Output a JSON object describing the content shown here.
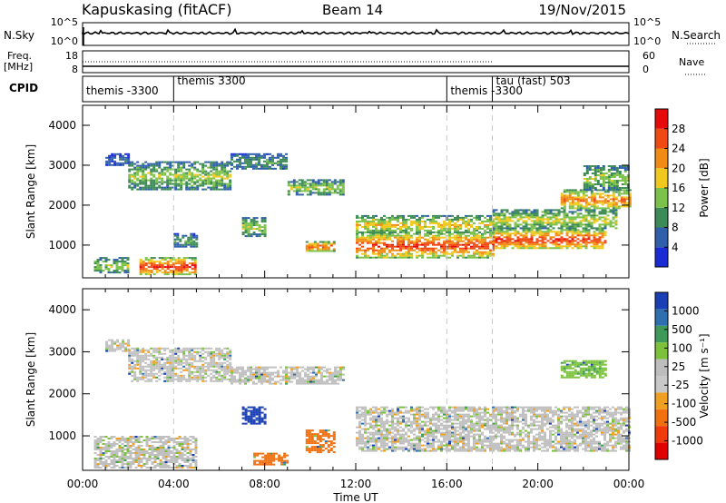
{
  "header": {
    "station": "Kapuskasing (fitACF)",
    "beam": "Beam 14",
    "date": "19/Nov/2015"
  },
  "nsky_panel": {
    "left_label": "N.Sky",
    "right_label": "N.Search",
    "left_ticks": [
      "10^5",
      "10^0"
    ],
    "right_ticks": [
      "10^5",
      "10^0"
    ]
  },
  "freq_panel": {
    "left_label_1": "Freq.",
    "left_label_2": "[MHz]",
    "right_label": "Nave",
    "left_ticks": [
      "18",
      "8"
    ],
    "right_ticks": [
      "60",
      "0"
    ]
  },
  "cpid_panel": {
    "label": "CPID",
    "programs": [
      {
        "name": "themis -3300",
        "start_hour": 0
      },
      {
        "name": "themis 3300",
        "start_hour": 4
      },
      {
        "name": "themis -3300",
        "start_hour": 16
      },
      {
        "name": "tau (fast) 503",
        "start_hour": 18
      }
    ]
  },
  "colors": {
    "power_scale": [
      "#1a2bd6",
      "#2f5faa",
      "#3c8a55",
      "#7cc24a",
      "#f0c81e",
      "#f08c14",
      "#f04a12",
      "#e60a0a"
    ],
    "velocity_scale": [
      "#1a3fb5",
      "#2e6fb0",
      "#3f9a5a",
      "#7bc23a",
      "#bdbdbd",
      "#c8c8c8",
      "#f0a020",
      "#f07010",
      "#f03a0a",
      "#e00000"
    ],
    "ground_scatter": "#c0c0c0",
    "dash_line": "#c8c8c8"
  },
  "chart_data": [
    {
      "type": "heatmap",
      "title": "Power",
      "xlabel": "Time UT",
      "ylabel": "Slant Range [km]",
      "x_ticks": [
        "00:00",
        "04:00",
        "08:00",
        "12:00",
        "16:00",
        "20:00",
        "00:00"
      ],
      "x_range_hours": [
        0,
        24
      ],
      "y_ticks": [
        1000,
        2000,
        3000,
        4000
      ],
      "ylim": [
        180,
        4500
      ],
      "colorbar_label": "Power [dB]",
      "colorbar_ticks": [
        4,
        8,
        12,
        16,
        20,
        24,
        28
      ],
      "colorbar_range": [
        0,
        32
      ],
      "cpid_boundaries_hours": [
        4,
        16,
        18
      ],
      "echo_bands": [
        {
          "t_start": 1.0,
          "t_end": 2.0,
          "r_low": 3000,
          "r_high": 3300,
          "power": 6
        },
        {
          "t_start": 2.0,
          "t_end": 6.5,
          "r_low": 2400,
          "r_high": 3100,
          "power": 14
        },
        {
          "t_start": 6.5,
          "t_end": 9.0,
          "r_low": 2900,
          "r_high": 3300,
          "power": 10
        },
        {
          "t_start": 9.0,
          "t_end": 11.5,
          "r_low": 2250,
          "r_high": 2650,
          "power": 14
        },
        {
          "t_start": 0.5,
          "t_end": 2.0,
          "r_low": 300,
          "r_high": 700,
          "power": 14
        },
        {
          "t_start": 2.5,
          "t_end": 5.0,
          "r_low": 250,
          "r_high": 700,
          "power": 26
        },
        {
          "t_start": 4.0,
          "t_end": 5.0,
          "r_low": 950,
          "r_high": 1300,
          "power": 10
        },
        {
          "t_start": 7.0,
          "t_end": 8.0,
          "r_low": 1200,
          "r_high": 1700,
          "power": 14
        },
        {
          "t_start": 9.8,
          "t_end": 11.0,
          "r_low": 850,
          "r_high": 1100,
          "power": 24
        },
        {
          "t_start": 12.0,
          "t_end": 18.0,
          "r_low": 700,
          "r_high": 1300,
          "power": 26
        },
        {
          "t_start": 12.0,
          "t_end": 18.0,
          "r_low": 1300,
          "r_high": 1750,
          "power": 18
        },
        {
          "t_start": 18.0,
          "t_end": 23.0,
          "r_low": 900,
          "r_high": 1400,
          "power": 26
        },
        {
          "t_start": 18.0,
          "t_end": 23.5,
          "r_low": 1400,
          "r_high": 1900,
          "power": 16
        },
        {
          "t_start": 21.0,
          "t_end": 24.0,
          "r_low": 1900,
          "r_high": 2400,
          "power": 22
        },
        {
          "t_start": 22.0,
          "t_end": 24.0,
          "r_low": 2400,
          "r_high": 3000,
          "power": 14
        }
      ]
    },
    {
      "type": "heatmap",
      "title": "Velocity",
      "xlabel": "Time UT",
      "ylabel": "Slant Range [km]",
      "x_ticks": [
        "00:00",
        "04:00",
        "08:00",
        "12:00",
        "16:00",
        "20:00",
        "00:00"
      ],
      "x_range_hours": [
        0,
        24
      ],
      "y_ticks": [
        1000,
        2000,
        3000,
        4000
      ],
      "ylim": [
        180,
        4500
      ],
      "colorbar_label": "Velocity [m s⁻¹]",
      "colorbar_ticks": [
        "1000",
        "500",
        "100",
        "25",
        "-25",
        "-100",
        "-500",
        "-1000"
      ],
      "cpid_boundaries_hours": [
        4,
        16,
        18
      ],
      "echo_bands": [
        {
          "t_start": 1.0,
          "t_end": 2.0,
          "r_low": 3000,
          "r_high": 3300,
          "velocity": 0
        },
        {
          "t_start": 2.0,
          "t_end": 6.5,
          "r_low": 2300,
          "r_high": 3100,
          "velocity": 0
        },
        {
          "t_start": 6.5,
          "t_end": 11.5,
          "r_low": 2250,
          "r_high": 2650,
          "velocity": 0
        },
        {
          "t_start": 0.5,
          "t_end": 5.0,
          "r_low": 250,
          "r_high": 1000,
          "velocity": 0
        },
        {
          "t_start": 7.0,
          "t_end": 8.0,
          "r_low": 1300,
          "r_high": 1700,
          "velocity": 600
        },
        {
          "t_start": 7.5,
          "t_end": 9.0,
          "r_low": 300,
          "r_high": 600,
          "velocity": -300
        },
        {
          "t_start": 9.8,
          "t_end": 11.0,
          "r_low": 600,
          "r_high": 1150,
          "velocity": -300
        },
        {
          "t_start": 12.0,
          "t_end": 24.0,
          "r_low": 650,
          "r_high": 1700,
          "velocity": 0
        },
        {
          "t_start": 21.0,
          "t_end": 23.0,
          "r_low": 2400,
          "r_high": 2800,
          "velocity": 80
        }
      ]
    }
  ]
}
